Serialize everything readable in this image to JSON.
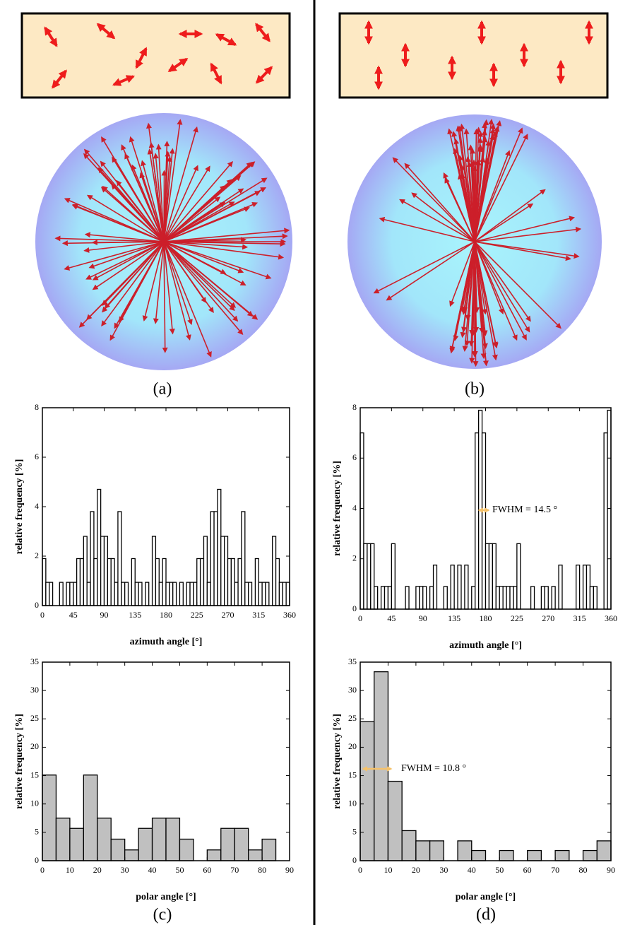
{
  "panel_labels": [
    "(a)",
    "(b)",
    "(c)",
    "(d)"
  ],
  "chart_data": [
    {
      "type": "histogram",
      "x_label": "azimuth angle [°]",
      "y_label": "relative frequency [%]",
      "color": "#ffffff",
      "bins": [
        0,
        5,
        10,
        15,
        20,
        25,
        30,
        35,
        40,
        45,
        50,
        55,
        60,
        65,
        70,
        75,
        80,
        85,
        90,
        95,
        100,
        105,
        110,
        115,
        120,
        125,
        130,
        135,
        140,
        145,
        150,
        155,
        160,
        165,
        170,
        175,
        180,
        185,
        190,
        195,
        200,
        205,
        210,
        215,
        220,
        225,
        230,
        235,
        240,
        245,
        250,
        255,
        260,
        265,
        270,
        275,
        280,
        285,
        290,
        295,
        300,
        305,
        310,
        315,
        320,
        325,
        330,
        335,
        340,
        345,
        350,
        355,
        360
      ],
      "values": [
        1.9,
        0.94,
        0.94,
        0,
        0,
        0.94,
        0,
        0.94,
        0.94,
        0.94,
        1.9,
        1.9,
        2.8,
        0.94,
        3.8,
        1.9,
        4.7,
        2.8,
        2.8,
        1.9,
        1.9,
        0.94,
        3.8,
        0.94,
        0.94,
        0,
        1.9,
        0.94,
        0.94,
        0,
        0.94,
        0,
        2.8,
        1.9,
        0.94,
        1.9,
        0.94,
        0.94,
        0.94,
        0,
        0.94,
        0,
        0.94,
        0.94,
        0.94,
        1.9,
        1.9,
        2.8,
        0.94,
        3.8,
        3.8,
        4.7,
        2.8,
        2.8,
        1.9,
        1.9,
        0.94,
        1.9,
        3.8,
        0.94,
        0.94,
        0,
        1.9,
        0.94,
        0.94,
        0.94,
        0,
        2.8,
        1.9,
        0.94,
        0.94,
        0.94
      ],
      "xlim": [
        0,
        360
      ],
      "ylim": [
        0,
        8
      ],
      "xticks": [
        0,
        45,
        90,
        135,
        180,
        225,
        270,
        315,
        360
      ],
      "yticks": [
        0,
        2,
        4,
        6,
        8
      ]
    },
    {
      "type": "histogram",
      "x_label": "azimuth angle [°]",
      "y_label": "relative frequency [%]",
      "color": "#ffffff",
      "annotation": "FWHM = 14.5 °",
      "bins": [
        0,
        5,
        10,
        15,
        20,
        25,
        30,
        35,
        40,
        45,
        50,
        55,
        60,
        65,
        70,
        75,
        80,
        85,
        90,
        95,
        100,
        105,
        110,
        115,
        120,
        125,
        130,
        135,
        140,
        145,
        150,
        155,
        160,
        165,
        170,
        175,
        180,
        185,
        190,
        195,
        200,
        205,
        210,
        215,
        220,
        225,
        230,
        235,
        240,
        245,
        250,
        255,
        260,
        265,
        270,
        275,
        280,
        285,
        290,
        295,
        300,
        305,
        310,
        315,
        320,
        325,
        330,
        335,
        340,
        345,
        350,
        355,
        360
      ],
      "values": [
        7,
        2.6,
        2.6,
        2.6,
        0.9,
        0,
        0.9,
        0.9,
        0.9,
        2.6,
        0,
        0,
        0,
        0.9,
        0,
        0,
        0.9,
        0.9,
        0.9,
        0,
        0.9,
        1.75,
        0,
        0,
        0.9,
        0,
        1.75,
        0,
        1.75,
        0,
        1.75,
        0,
        0.9,
        7,
        7.9,
        7,
        2.6,
        2.6,
        2.6,
        0.9,
        0.9,
        0.9,
        0.9,
        0.9,
        0.9,
        2.6,
        0,
        0,
        0,
        0.9,
        0,
        0,
        0.9,
        0.9,
        0,
        0.9,
        0,
        1.75,
        0,
        0,
        0,
        0,
        1.75,
        0,
        1.75,
        1.75,
        0.9,
        0.9,
        0,
        0,
        7,
        7.9
      ],
      "xlim": [
        0,
        360
      ],
      "ylim": [
        0,
        8
      ],
      "xticks": [
        0,
        45,
        90,
        135,
        180,
        225,
        270,
        315,
        360
      ],
      "yticks": [
        0,
        2,
        4,
        6,
        8
      ]
    },
    {
      "type": "histogram",
      "x_label": "polar angle [°]",
      "y_label": "relative frequency [%]",
      "color": "#c0c0c0",
      "bins": [
        0,
        5,
        10,
        15,
        20,
        25,
        30,
        35,
        40,
        45,
        50,
        55,
        60,
        65,
        70,
        75,
        80,
        85,
        90
      ],
      "values": [
        15.1,
        7.5,
        5.7,
        15.1,
        7.5,
        3.8,
        1.9,
        5.7,
        7.5,
        7.5,
        3.8,
        0,
        1.9,
        5.7,
        5.7,
        1.9,
        3.8,
        0
      ],
      "xlim": [
        0,
        90
      ],
      "ylim": [
        0,
        35
      ],
      "xticks": [
        0,
        10,
        20,
        30,
        40,
        50,
        60,
        70,
        80,
        90
      ],
      "yticks": [
        0,
        5,
        10,
        15,
        20,
        25,
        30,
        35
      ]
    },
    {
      "type": "histogram",
      "x_label": "polar angle [°]",
      "y_label": "relative frequency [%]",
      "color": "#c0c0c0",
      "annotation": "FWHM = 10.8 °",
      "bins": [
        0,
        5,
        10,
        15,
        20,
        25,
        30,
        35,
        40,
        45,
        50,
        55,
        60,
        65,
        70,
        75,
        80,
        85,
        90
      ],
      "values": [
        24.5,
        33.3,
        14,
        5.3,
        3.5,
        3.5,
        0,
        3.5,
        1.8,
        0,
        1.8,
        0,
        1.8,
        0,
        1.8,
        0,
        1.8,
        3.5
      ],
      "xlim": [
        0,
        90
      ],
      "ylim": [
        0,
        35
      ],
      "xticks": [
        0,
        10,
        20,
        30,
        40,
        50,
        60,
        70,
        80,
        90
      ],
      "yticks": [
        0,
        5,
        10,
        15,
        20,
        25,
        30,
        35
      ]
    }
  ]
}
